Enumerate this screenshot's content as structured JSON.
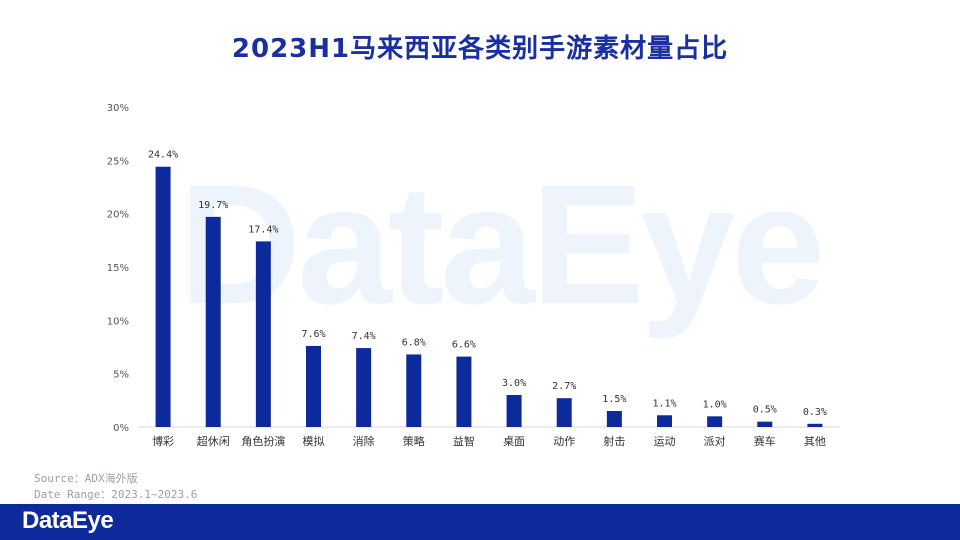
{
  "title": "2023H1马来西亚各类别手游素材量占比",
  "watermark": "DataEye",
  "source_line": "Source：ADX海外版",
  "date_line": "Date Range：2023.1~2023.6",
  "footer_logo": "DataEye",
  "colors": {
    "bar": "#0d2a9c",
    "title": "#1a2fa0",
    "footer": "#0d2a9c"
  },
  "chart_data": {
    "type": "bar",
    "categories": [
      "博彩",
      "超休闲",
      "角色扮演",
      "模拟",
      "消除",
      "策略",
      "益智",
      "桌面",
      "动作",
      "射击",
      "运动",
      "派对",
      "赛车",
      "其他"
    ],
    "values": [
      24.4,
      19.7,
      17.4,
      7.6,
      7.4,
      6.8,
      6.6,
      3.0,
      2.7,
      1.5,
      1.1,
      1.0,
      0.5,
      0.3
    ],
    "data_labels": [
      "24.4%",
      "19.7%",
      "17.4%",
      "7.6%",
      "7.4%",
      "6.8%",
      "6.6%",
      "3.0%",
      "2.7%",
      "1.5%",
      "1.1%",
      "1.0%",
      "0.5%",
      "0.3%"
    ],
    "y_ticks": [
      "0%",
      "5%",
      "10%",
      "15%",
      "20%",
      "25%",
      "30%"
    ],
    "ylim": [
      0,
      30
    ],
    "grid": false
  }
}
